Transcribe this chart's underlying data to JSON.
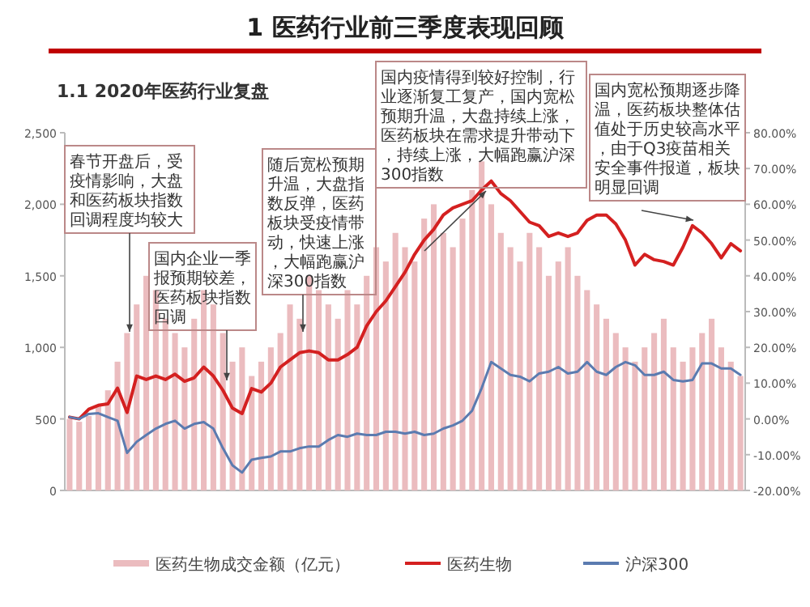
{
  "chart_data": {
    "type": "bar",
    "title": "1 医药行业前三季度表现回顾",
    "subtitle": "1.1 2020年医药行业复盘",
    "annotations": [
      "春节开盘后，受疫情影响，大盘和医药板块指数回调程度均较大",
      "国内企业一季报预期较差，医药板块指数回调",
      "随后宽松预期升温，大盘指数反弹，医药板块受疫情带动，快速上涨，大幅跑赢沪深300指数",
      "国内疫情得到较好控制，行业逐渐复工复产，国内宽松预期升温，大盘持续上涨，医药板块在需求提升带动下，持续上涨，大幅跑赢沪深300指数",
      "国内宽松预期逐步降温，医药板块整体估值处于历史较高水平，由于Q3疫苗相关安全事件报道，板块明显回调"
    ],
    "categories": [
      null,
      null,
      null,
      null,
      null,
      null,
      null,
      null,
      null,
      null,
      null,
      null,
      null,
      null,
      null,
      null,
      null,
      null,
      null,
      null,
      null,
      null,
      null,
      null,
      null,
      null,
      null,
      null,
      null,
      null,
      null,
      null,
      null,
      null,
      null,
      null,
      null,
      null,
      null,
      null,
      null,
      null,
      null,
      null,
      null,
      null,
      null,
      null,
      null,
      null,
      null,
      null,
      null,
      null,
      null,
      null,
      null,
      null,
      null,
      null,
      null,
      null,
      null,
      null,
      null,
      null,
      null,
      null,
      null,
      null,
      null
    ],
    "ylim": [
      0,
      2500
    ],
    "yticks": [
      0,
      {
        "value": 500,
        "label": "500"
      },
      {
        "value": 1000,
        "label": "1,000"
      },
      {
        "value": 1500,
        "label": "1,500"
      },
      {
        "value": 2000,
        "label": "2,000"
      },
      {
        "value": 2500,
        "label": "2,500"
      }
    ],
    "y2lim": [
      -20,
      80
    ],
    "y2ticks": [
      {
        "value": -20,
        "label": "-20.00%"
      },
      {
        "value": -10,
        "label": "-10.00%"
      },
      {
        "value": 0,
        "label": "0.00%"
      },
      {
        "value": 10,
        "label": "10.00%"
      },
      {
        "value": 20,
        "label": "20.00%"
      },
      {
        "value": 30,
        "label": "30.00%"
      },
      {
        "value": 40,
        "label": "40.00%"
      },
      {
        "value": 50,
        "label": "50.00%"
      },
      {
        "value": 60,
        "label": "60.00%"
      },
      {
        "value": 70,
        "label": "70.00%"
      },
      {
        "value": 80,
        "label": "80.00%"
      }
    ],
    "legend": "bottom",
    "series": [
      {
        "name": "医药生物成交金额（亿元）",
        "color": "#ebbcbf",
        "values": [
          500,
          480,
          520,
          600,
          700,
          900,
          1100,
          1300,
          1500,
          1400,
          1200,
          1100,
          1000,
          1200,
          1400,
          1300,
          1100,
          900,
          1000,
          800,
          900,
          1000,
          1100,
          1300,
          1200,
          1500,
          1400,
          1300,
          1200,
          1400,
          1300,
          1500,
          1700,
          1600,
          1800,
          1700,
          1600,
          1900,
          2000,
          1800,
          1700,
          1900,
          2100,
          2300,
          2000,
          1800,
          1700,
          1600,
          1800,
          1700,
          1500,
          1600,
          1700,
          1500,
          1400,
          1300,
          1200,
          1100,
          1000,
          900,
          1000,
          1100,
          1200,
          1000,
          900,
          1000,
          1100,
          1200,
          1000,
          900,
          800
        ]
      },
      {
        "name": "医药生物",
        "type": "line",
        "axis": "y2",
        "color": "#d42020",
        "values": [
          0.5,
          0,
          2.7,
          3.8,
          4.2,
          8.6,
          1.8,
          12,
          11,
          12,
          11,
          12.5,
          10.5,
          11.5,
          14.5,
          12,
          8,
          3,
          1.5,
          8.5,
          7.5,
          10,
          14.5,
          16.5,
          18.5,
          19,
          18.5,
          16.5,
          16.5,
          18,
          20,
          26,
          30,
          33,
          37,
          41,
          46,
          50,
          53,
          57,
          59,
          60,
          61,
          64,
          66.5,
          63,
          61,
          58,
          55,
          54,
          51,
          52,
          51,
          52,
          55.5,
          57,
          57,
          54.5,
          50,
          43,
          46,
          44.5,
          44,
          43,
          48,
          54,
          52,
          49,
          45,
          49,
          47
        ]
      },
      {
        "name": "沪深300",
        "type": "line",
        "axis": "y2",
        "color": "#5b7bb0",
        "values": [
          0.5,
          0,
          1.4,
          1.6,
          0.5,
          -0.5,
          -9.5,
          -6.4,
          -4.5,
          -2.7,
          -1.4,
          -0.5,
          -2.7,
          -1.4,
          -0.9,
          -2.7,
          -8.2,
          -13,
          -15,
          -11.4,
          -10.9,
          -10.5,
          -9.1,
          -9.1,
          -8.2,
          -7.7,
          -7.7,
          -5.9,
          -4.5,
          -5,
          -4.1,
          -4.5,
          -4.5,
          -3.6,
          -3.6,
          -4.1,
          -3.6,
          -4.5,
          -4.1,
          -2.7,
          -1.8,
          -0.5,
          2.3,
          8.6,
          15.9,
          14.1,
          12.3,
          11.8,
          10.5,
          12.7,
          13.2,
          14.5,
          12.7,
          13.2,
          15.9,
          13.2,
          12.3,
          14.5,
          15.9,
          15,
          12.3,
          12.3,
          13.2,
          10.9,
          10.5,
          10.9,
          15.5,
          15.5,
          14.1,
          14.1,
          12.3
        ]
      }
    ]
  }
}
